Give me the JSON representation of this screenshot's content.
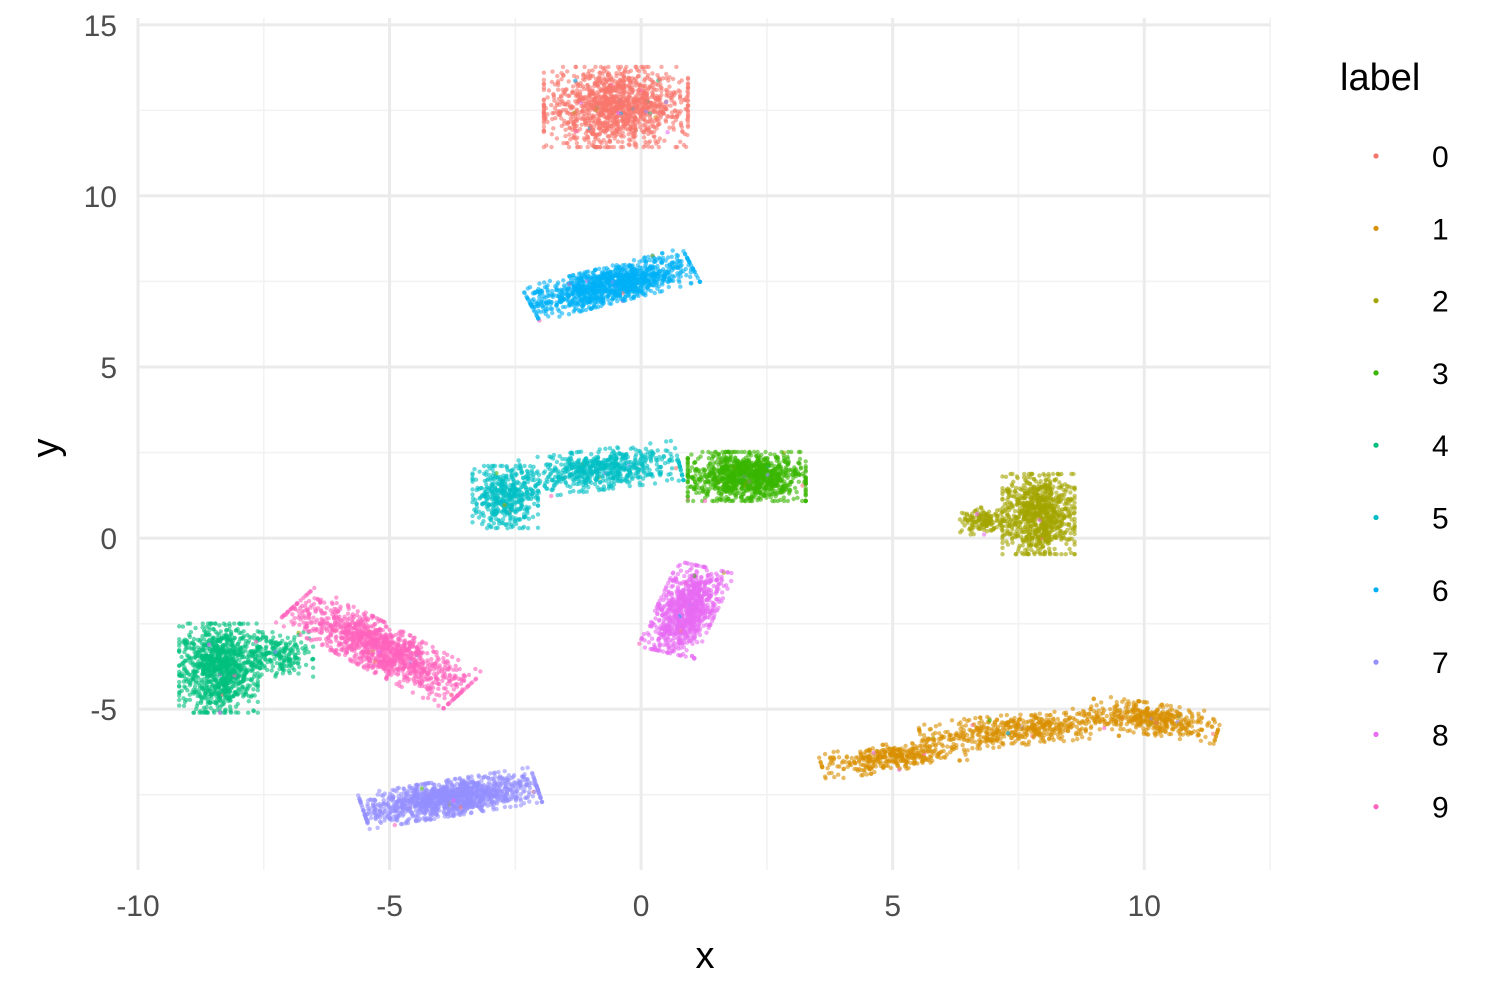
{
  "chart_data": {
    "type": "scatter",
    "title": "",
    "xlabel": "x",
    "ylabel": "y",
    "xlim": [
      -10,
      12.5
    ],
    "ylim": [
      -9.7,
      15.2
    ],
    "x_ticks": [
      "-10",
      "-5",
      "0",
      "5",
      "10"
    ],
    "y_ticks": [
      "-5",
      "0",
      "5",
      "10",
      "15"
    ],
    "grid": true,
    "legend": {
      "title": "label",
      "position": "right"
    },
    "series": [
      {
        "name": "0",
        "color": "#F8766D",
        "clusters": [
          {
            "cx": -0.5,
            "cy": 12.6,
            "sx": 1.1,
            "sy": 0.9,
            "angle": 0,
            "n": 1300
          }
        ]
      },
      {
        "name": "1",
        "color": "#D89000",
        "clusters": [
          {
            "cx": 5.0,
            "cy": -6.4,
            "sx": 1.1,
            "sy": 0.3,
            "angle": 12,
            "n": 380
          },
          {
            "cx": 7.5,
            "cy": -5.6,
            "sx": 1.5,
            "sy": 0.35,
            "angle": 8,
            "n": 500
          },
          {
            "cx": 10.2,
            "cy": -5.3,
            "sx": 1.0,
            "sy": 0.35,
            "angle": -12,
            "n": 420
          }
        ]
      },
      {
        "name": "2",
        "color": "#A3A500",
        "clusters": [
          {
            "cx": 7.9,
            "cy": 0.7,
            "sx": 0.55,
            "sy": 0.9,
            "angle": 0,
            "n": 900
          },
          {
            "cx": 6.8,
            "cy": 0.5,
            "sx": 0.4,
            "sy": 0.3,
            "angle": 0,
            "n": 150
          }
        ]
      },
      {
        "name": "3",
        "color": "#39B600",
        "clusters": [
          {
            "cx": 2.1,
            "cy": 1.8,
            "sx": 0.9,
            "sy": 0.55,
            "angle": 0,
            "n": 1100
          }
        ]
      },
      {
        "name": "4",
        "color": "#00BF7D",
        "clusters": [
          {
            "cx": -8.4,
            "cy": -3.8,
            "sx": 0.6,
            "sy": 1.0,
            "angle": 0,
            "n": 1000
          },
          {
            "cx": -7.3,
            "cy": -3.4,
            "sx": 0.6,
            "sy": 0.5,
            "angle": 0,
            "n": 250
          }
        ]
      },
      {
        "name": "5",
        "color": "#00BFC4",
        "clusters": [
          {
            "cx": -2.7,
            "cy": 1.2,
            "sx": 0.5,
            "sy": 0.7,
            "angle": 0,
            "n": 450
          },
          {
            "cx": -0.8,
            "cy": 2.0,
            "sx": 1.2,
            "sy": 0.45,
            "angle": 10,
            "n": 650
          }
        ]
      },
      {
        "name": "6",
        "color": "#00B0F6",
        "clusters": [
          {
            "cx": -0.6,
            "cy": 7.4,
            "sx": 1.3,
            "sy": 0.4,
            "angle": 20,
            "n": 1200
          }
        ]
      },
      {
        "name": "7",
        "color": "#9590FF",
        "clusters": [
          {
            "cx": -3.8,
            "cy": -7.6,
            "sx": 1.35,
            "sy": 0.4,
            "angle": 13,
            "n": 1300
          }
        ]
      },
      {
        "name": "8",
        "color": "#E76BF3",
        "clusters": [
          {
            "cx": 0.9,
            "cy": -2.1,
            "sx": 0.45,
            "sy": 1.0,
            "angle": -18,
            "n": 950
          }
        ]
      },
      {
        "name": "9",
        "color": "#FF62BC",
        "clusters": [
          {
            "cx": -5.2,
            "cy": -3.2,
            "sx": 1.6,
            "sy": 0.5,
            "angle": -37,
            "n": 1200
          }
        ]
      }
    ]
  }
}
